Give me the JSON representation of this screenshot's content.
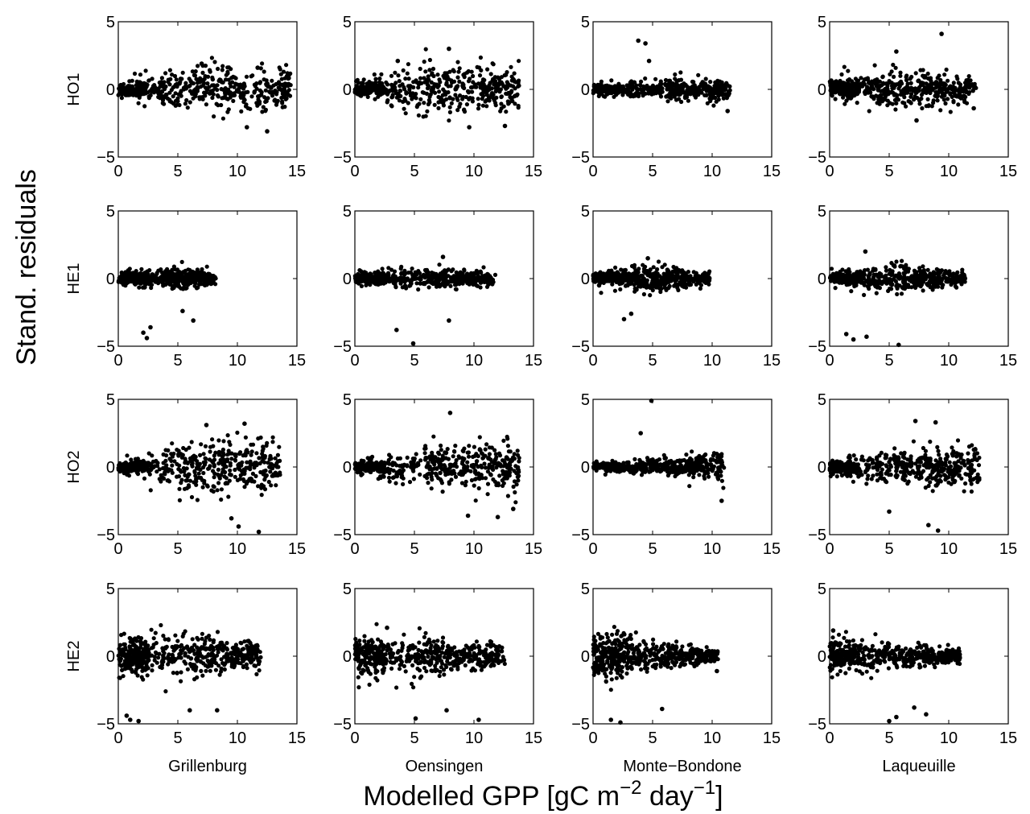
{
  "figure": {
    "ylabel": "Stand. residuals",
    "xlabel": {
      "parts": [
        {
          "text": "Modelled GPP [gC m",
          "sup": false
        },
        {
          "text": "−2",
          "sup": true
        },
        {
          "text": " day",
          "sup": false
        },
        {
          "text": "−1",
          "sup": true
        },
        {
          "text": "]",
          "sup": false
        }
      ]
    },
    "row_labels": [
      "HO1",
      "HE1",
      "HO2",
      "HE2"
    ],
    "col_labels": [
      "Grillenburg",
      "Oensingen",
      "Monte−Bondone",
      "Laqueuille"
    ],
    "x_ticks": [
      0,
      5,
      10,
      15
    ],
    "y_ticks": [
      -5,
      0,
      5
    ],
    "point_color": "#000000",
    "frame_color": "#000000"
  },
  "chart_data": {
    "type": "scatter",
    "layout": "4x4 panel grid",
    "xlim": [
      0,
      15
    ],
    "ylim": [
      -5,
      5
    ],
    "grid": false,
    "legend": "none",
    "panels": [
      {
        "row": "HO1",
        "col": "Grillenburg",
        "x_range": [
          0,
          14.5
        ],
        "spread": [
          0.6,
          1.6,
          1.2
        ],
        "outliers": [
          [
            12.5,
            -3.1
          ],
          [
            10.8,
            -2.8
          ],
          [
            7,
            1.9
          ],
          [
            11.7,
            1.6
          ]
        ]
      },
      {
        "row": "HO1",
        "col": "Oensingen",
        "x_range": [
          0,
          13.8
        ],
        "spread": [
          0.6,
          1.6,
          1.3
        ],
        "outliers": [
          [
            7.9,
            3
          ],
          [
            9.6,
            -2.8
          ],
          [
            12.6,
            -2.7
          ],
          [
            3.6,
            2.1
          ]
        ]
      },
      {
        "row": "HO1",
        "col": "Monte−Bondone",
        "x_range": [
          0,
          11.5
        ],
        "spread": [
          0.4,
          0.6,
          0.8
        ],
        "outliers": [
          [
            3.8,
            3.6
          ],
          [
            4.4,
            3.4
          ],
          [
            4.7,
            2.1
          ],
          [
            11.3,
            -1.6
          ]
        ]
      },
      {
        "row": "HO1",
        "col": "Laqueuille",
        "x_range": [
          0,
          12.3
        ],
        "spread": [
          0.8,
          1.3,
          1.1
        ],
        "outliers": [
          [
            9.4,
            4.1
          ],
          [
            5.6,
            2.8
          ],
          [
            7.3,
            -2.3
          ],
          [
            12.1,
            -1.4
          ]
        ]
      },
      {
        "row": "HE1",
        "col": "Grillenburg",
        "x_range": [
          0,
          8.2
        ],
        "spread": [
          0.5,
          0.6,
          0.5
        ],
        "outliers": [
          [
            2.1,
            -4
          ],
          [
            2.4,
            -4.4
          ],
          [
            2.7,
            -3.6
          ],
          [
            6.3,
            -3.1
          ],
          [
            5.4,
            -2.4
          ]
        ]
      },
      {
        "row": "HE1",
        "col": "Oensingen",
        "x_range": [
          0,
          11.8
        ],
        "spread": [
          0.5,
          0.6,
          0.5
        ],
        "outliers": [
          [
            3.5,
            -3.8
          ],
          [
            4.9,
            -4.8
          ],
          [
            7.9,
            -3.1
          ],
          [
            7.4,
            1.6
          ]
        ]
      },
      {
        "row": "HE1",
        "col": "Monte−Bondone",
        "x_range": [
          0,
          9.8
        ],
        "spread": [
          0.5,
          0.9,
          0.4
        ],
        "outliers": [
          [
            2.6,
            -3
          ],
          [
            3.2,
            -2.6
          ],
          [
            4.6,
            1.5
          ],
          [
            9.7,
            0.4
          ]
        ]
      },
      {
        "row": "HE1",
        "col": "Laqueuille",
        "x_range": [
          0,
          11.4
        ],
        "spread": [
          0.5,
          0.9,
          0.4
        ],
        "outliers": [
          [
            1.4,
            -4.1
          ],
          [
            2,
            -4.5
          ],
          [
            3.1,
            -4.3
          ],
          [
            5.8,
            -4.9
          ],
          [
            3,
            2
          ],
          [
            10.8,
            -0.2
          ]
        ]
      },
      {
        "row": "HO2",
        "col": "Grillenburg",
        "x_range": [
          0,
          13.6
        ],
        "spread": [
          0.4,
          1.8,
          1.6
        ],
        "outliers": [
          [
            11.8,
            -4.8
          ],
          [
            10.1,
            -4.4
          ],
          [
            9.5,
            -3.8
          ],
          [
            10.6,
            3.2
          ],
          [
            7.4,
            3.1
          ]
        ]
      },
      {
        "row": "HO2",
        "col": "Oensingen",
        "x_range": [
          0,
          13.8
        ],
        "spread": [
          0.5,
          1.4,
          1.6
        ],
        "outliers": [
          [
            8,
            4
          ],
          [
            13.3,
            -3.1
          ],
          [
            12,
            -3.7
          ],
          [
            9.5,
            -3.6
          ]
        ]
      },
      {
        "row": "HO2",
        "col": "Monte−Bondone",
        "x_range": [
          0,
          11
        ],
        "spread": [
          0.3,
          0.5,
          1.1
        ],
        "outliers": [
          [
            4.9,
            4.9
          ],
          [
            4,
            2.5
          ],
          [
            10.8,
            -2.5
          ]
        ]
      },
      {
        "row": "HO2",
        "col": "Laqueuille",
        "x_range": [
          0,
          12.6
        ],
        "spread": [
          0.7,
          1.2,
          1.5
        ],
        "outliers": [
          [
            9.1,
            -4.7
          ],
          [
            5,
            -3.3
          ],
          [
            8.3,
            -4.3
          ],
          [
            7.2,
            3.4
          ],
          [
            8.9,
            3.3
          ]
        ]
      },
      {
        "row": "HE2",
        "col": "Grillenburg",
        "x_range": [
          0,
          12
        ],
        "spread": [
          1.8,
          1.3,
          0.7
        ],
        "outliers": [
          [
            1,
            -4.7
          ],
          [
            1.7,
            -4.8
          ],
          [
            0.7,
            -4.4
          ],
          [
            8.3,
            -4
          ],
          [
            6,
            -4
          ]
        ]
      },
      {
        "row": "HE2",
        "col": "Oensingen",
        "x_range": [
          0,
          12.6
        ],
        "spread": [
          1.6,
          1.2,
          0.8
        ],
        "outliers": [
          [
            5.1,
            -4.6
          ],
          [
            10.4,
            -4.7
          ],
          [
            7.7,
            -4
          ],
          [
            2.7,
            2.1
          ]
        ]
      },
      {
        "row": "HE2",
        "col": "Monte−Bondone",
        "x_range": [
          0,
          10.5
        ],
        "spread": [
          2,
          0.9,
          0.4
        ],
        "outliers": [
          [
            1.5,
            -4.7
          ],
          [
            2.3,
            -4.9
          ],
          [
            5.8,
            -3.9
          ],
          [
            10.4,
            -1.1
          ]
        ]
      },
      {
        "row": "HE2",
        "col": "Laqueuille",
        "x_range": [
          0,
          11
        ],
        "spread": [
          1.3,
          0.8,
          0.4
        ],
        "outliers": [
          [
            5,
            -4.8
          ],
          [
            5.6,
            -4.5
          ],
          [
            8.1,
            -4.3
          ],
          [
            7.1,
            -3.8
          ],
          [
            0.3,
            1.9
          ]
        ]
      }
    ]
  }
}
